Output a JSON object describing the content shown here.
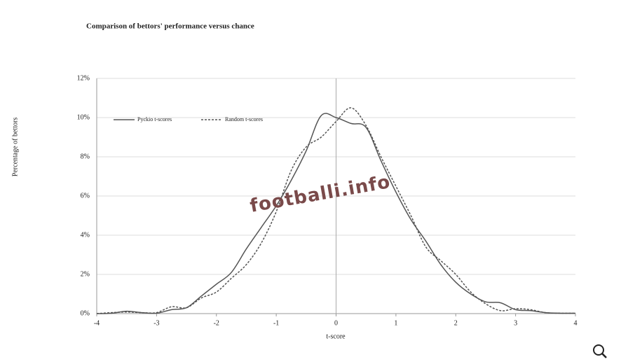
{
  "chart_data": {
    "type": "line",
    "title": "Comparison of bettors' performance versus chance",
    "x_label": "t-score",
    "y_label": "Percentage of bettors",
    "watermark": "footballi.info",
    "x": [
      -4,
      -3.75,
      -3.5,
      -3.25,
      -3,
      -2.75,
      -2.5,
      -2.25,
      -2,
      -1.75,
      -1.5,
      -1.25,
      -1,
      -0.75,
      -0.5,
      -0.25,
      0,
      0.25,
      0.5,
      0.75,
      1,
      1.25,
      1.5,
      1.75,
      2,
      2.25,
      2.5,
      2.75,
      3,
      3.25,
      3.5,
      3.75,
      4
    ],
    "series": [
      {
        "name": "Pyckio t-scores",
        "color": "#555555",
        "dash": false,
        "values": [
          0,
          0.02,
          0.12,
          0.05,
          0.02,
          0.2,
          0.3,
          0.9,
          1.5,
          2.1,
          3.3,
          4.4,
          5.5,
          6.8,
          8.3,
          10.1,
          10.0,
          9.7,
          9.5,
          7.8,
          6.2,
          4.8,
          3.7,
          2.5,
          1.6,
          1.0,
          0.6,
          0.55,
          0.2,
          0.15,
          0.05,
          0.02,
          0.02
        ]
      },
      {
        "name": "Random t-scores",
        "color": "#555555",
        "dash": true,
        "values": [
          0,
          0.05,
          0.08,
          0.05,
          0.05,
          0.35,
          0.3,
          0.8,
          1.1,
          1.8,
          2.5,
          3.6,
          5.2,
          7.3,
          8.5,
          9.0,
          9.8,
          10.5,
          9.6,
          8.0,
          6.5,
          5.0,
          3.4,
          2.7,
          2.0,
          1.1,
          0.5,
          0.15,
          0.25,
          0.2,
          0.05,
          0.02,
          0.02
        ]
      }
    ],
    "xlim": [
      -4,
      4
    ],
    "xticks": [
      -4,
      -3,
      -2,
      -1,
      0,
      1,
      2,
      3,
      4
    ],
    "ylim": [
      0,
      12
    ],
    "yticks": [
      {
        "value": 0,
        "label": "0%"
      },
      {
        "value": 2,
        "label": "2%"
      },
      {
        "value": 4,
        "label": "4%"
      },
      {
        "value": 6,
        "label": "6%"
      },
      {
        "value": 8,
        "label": "8%"
      },
      {
        "value": 10,
        "label": "10%"
      },
      {
        "value": 12,
        "label": "12%"
      }
    ],
    "grid": true,
    "legend": "upper left"
  }
}
